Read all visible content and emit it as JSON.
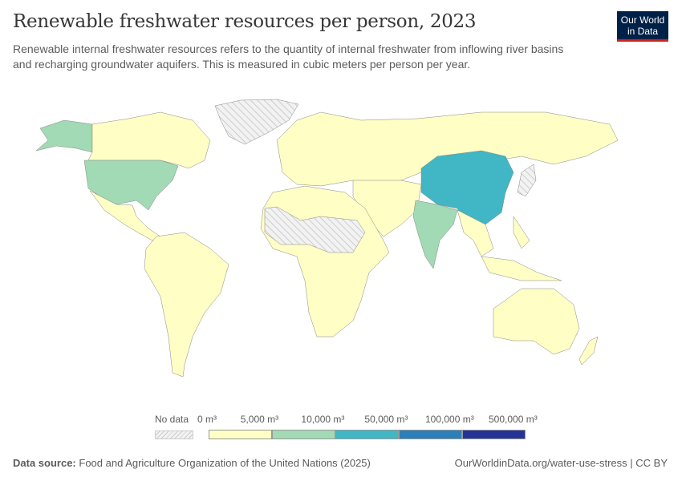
{
  "header": {
    "title": "Renewable freshwater resources per person, 2023",
    "subtitle": "Renewable internal freshwater resources refers to the quantity of internal freshwater from inflowing river basins and recharging groundwater aquifers. This is measured in cubic meters per person per year."
  },
  "logo": {
    "line1": "Our World",
    "line2": "in Data"
  },
  "legend": {
    "no_data": "No data",
    "ticks": [
      "0 m³",
      "5,000 m³",
      "10,000 m³",
      "50,000 m³",
      "100,000 m³",
      "500,000 m³"
    ],
    "colors": [
      "#fefec5",
      "#a1dab4",
      "#41b6c4",
      "#2c7fb8",
      "#253494"
    ]
  },
  "footer": {
    "source_label": "Data source:",
    "source": "Food and Agriculture Organization of the United Nations (2025)",
    "url": "OurWorldinData.org/water-use-stress | CC BY"
  }
}
